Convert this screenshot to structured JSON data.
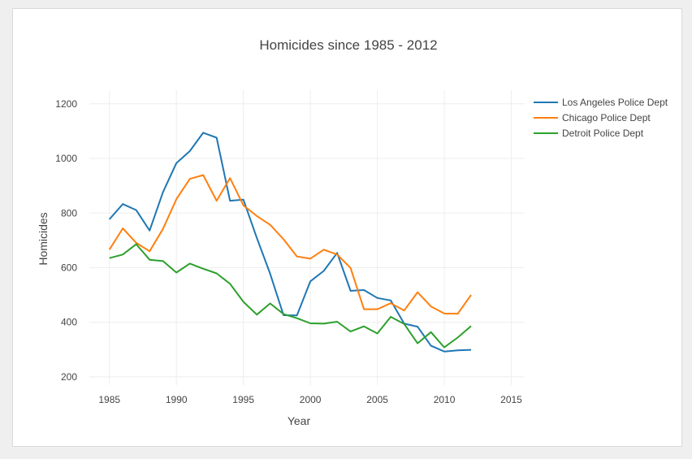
{
  "chart_data": {
    "type": "line",
    "title": "Homicides since 1985 - 2012",
    "xlabel": "Year",
    "ylabel": "Homicides",
    "xlim": [
      1983.5,
      2016
    ],
    "ylim": [
      170,
      1250
    ],
    "xticks": [
      1985,
      1990,
      1995,
      2000,
      2005,
      2010,
      2015
    ],
    "yticks": [
      200,
      400,
      600,
      800,
      1000,
      1200
    ],
    "grid": true,
    "legend_position": "top-right",
    "x": [
      1985,
      1986,
      1987,
      1988,
      1989,
      1990,
      1991,
      1992,
      1993,
      1994,
      1995,
      1996,
      1997,
      1998,
      1999,
      2000,
      2001,
      2002,
      2003,
      2004,
      2005,
      2006,
      2007,
      2008,
      2009,
      2010,
      2011,
      2012
    ],
    "series": [
      {
        "name": "Los Angeles Police Dept",
        "color": "#1f77b4",
        "values": [
          777,
          833,
          811,
          736,
          877,
          983,
          1027,
          1094,
          1076,
          845,
          849,
          709,
          578,
          426,
          425,
          550,
          588,
          654,
          515,
          518,
          489,
          480,
          395,
          384,
          314,
          293,
          297,
          299
        ]
      },
      {
        "name": "Chicago Police Dept",
        "color": "#ff7f0e",
        "values": [
          666,
          744,
          691,
          660,
          742,
          851,
          925,
          939,
          845,
          928,
          828,
          789,
          757,
          704,
          641,
          633,
          666,
          648,
          599,
          448,
          448,
          470,
          443,
          510,
          458,
          432,
          431,
          500
        ]
      },
      {
        "name": "Detroit Police Dept",
        "color": "#2ca02c",
        "values": [
          635,
          648,
          686,
          629,
          624,
          582,
          615,
          596,
          579,
          541,
          475,
          428,
          469,
          430,
          415,
          396,
          395,
          402,
          366,
          385,
          359,
          420,
          394,
          323,
          364,
          308,
          344,
          386
        ]
      }
    ]
  }
}
